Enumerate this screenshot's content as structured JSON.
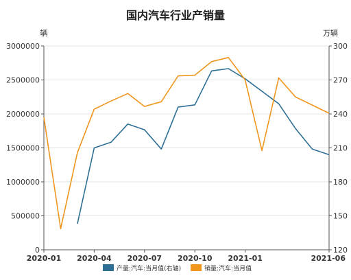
{
  "chart_data": {
    "type": "line",
    "title": "国内汽车行业产销量",
    "left_unit": "辆",
    "right_unit": "万辆",
    "x_tick_labels": [
      "2020-01",
      "2020-04",
      "2020-07",
      "2020-10",
      "2021-01",
      "2021-06"
    ],
    "x": [
      "2020-01",
      "2020-02",
      "2020-03",
      "2020-04",
      "2020-05",
      "2020-06",
      "2020-07",
      "2020-08",
      "2020-09",
      "2020-10",
      "2020-11",
      "2020-12",
      "2021-01",
      "2021-02",
      "2021-03",
      "2021-04",
      "2021-05",
      "2021-06"
    ],
    "y_left": {
      "ylim": [
        0,
        3000000
      ],
      "ticks": [
        "0",
        "500000",
        "1000000",
        "1500000",
        "2000000",
        "2500000",
        "3000000"
      ]
    },
    "y_right": {
      "ylim": [
        120,
        300
      ],
      "ticks": [
        "120",
        "150",
        "180",
        "210",
        "240",
        "270",
        "300"
      ]
    },
    "grid": true,
    "legend_placement": "bottom",
    "series": [
      {
        "name": "产量:汽车:当月值(右轴)",
        "axis": "right",
        "color": "#2e6f95",
        "values": [
          null,
          null,
          143,
          210,
          215,
          231,
          226,
          209,
          246,
          248,
          278,
          280,
          271,
          260,
          249,
          227,
          209,
          204
        ]
      },
      {
        "name": "销量:汽车:当月值",
        "axis": "left",
        "color": "#f0951e",
        "values": [
          1950000,
          310000,
          1430000,
          2070000,
          2190000,
          2300000,
          2110000,
          2180000,
          2560000,
          2570000,
          2770000,
          2830000,
          2500000,
          1460000,
          2530000,
          2250000,
          2130000,
          2010000
        ]
      }
    ]
  }
}
